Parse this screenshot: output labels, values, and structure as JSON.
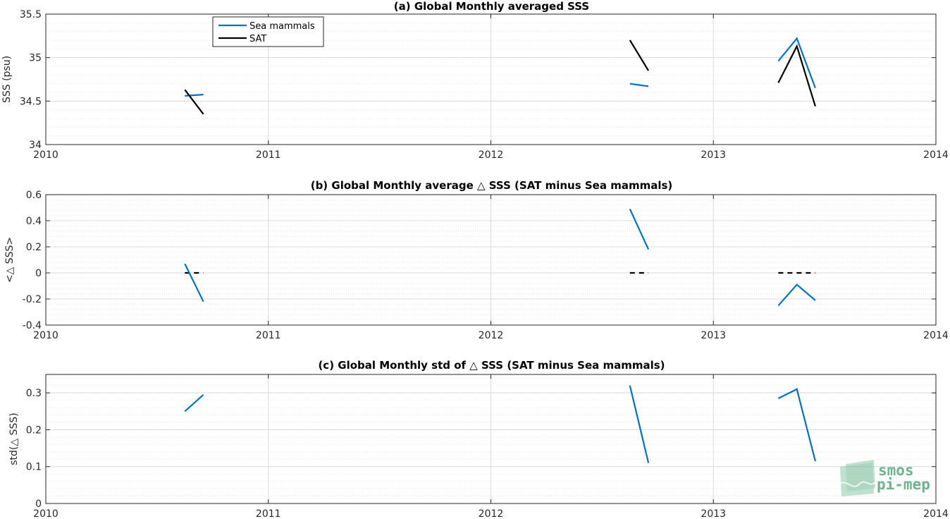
{
  "colors": {
    "sea_mammals": "#0072BD",
    "sat": "#000000",
    "grid": "#dcdcdc",
    "logo": "#6fb38f"
  },
  "logo": {
    "line1": "smos",
    "line2": "pi-mep"
  },
  "chart_data": [
    {
      "type": "line",
      "title": "(a) Global Monthly averaged SSS",
      "xlabel": "",
      "ylabel": "SSS (psu)",
      "xlim": [
        2010,
        2014
      ],
      "ylim": [
        34,
        35.5
      ],
      "xticks": [
        2010,
        2011,
        2012,
        2013,
        2014
      ],
      "yticks": [
        34,
        34.5,
        35,
        35.5
      ],
      "ytick_labels": [
        "34",
        "34.5",
        "35",
        "35.5"
      ],
      "minor_grid": true,
      "grid": true,
      "legend": {
        "placement": "top-left",
        "entries": [
          "Sea mammals",
          "SAT"
        ]
      },
      "series": [
        {
          "name": "Sea mammals",
          "color": "#0072BD",
          "segments": [
            [
              [
                2010.625,
                34.56
              ],
              [
                2010.708,
                34.575
              ]
            ],
            [
              [
                2012.625,
                34.7
              ],
              [
                2012.708,
                34.67
              ]
            ],
            [
              [
                2013.292,
                34.96
              ],
              [
                2013.375,
                35.22
              ],
              [
                2013.458,
                34.65
              ]
            ]
          ]
        },
        {
          "name": "SAT",
          "color": "#000000",
          "segments": [
            [
              [
                2010.625,
                34.63
              ],
              [
                2010.708,
                34.35
              ]
            ],
            [
              [
                2012.625,
                35.2
              ],
              [
                2012.708,
                34.85
              ]
            ],
            [
              [
                2013.292,
                34.71
              ],
              [
                2013.375,
                35.13
              ],
              [
                2013.458,
                34.44
              ]
            ]
          ]
        }
      ]
    },
    {
      "type": "line",
      "title": "(b) Global Monthly average △ SSS (SAT minus Sea mammals)",
      "xlabel": "",
      "ylabel": "<△ SSS>",
      "xlim": [
        2010,
        2014
      ],
      "ylim": [
        -0.4,
        0.6
      ],
      "xticks": [
        2010,
        2011,
        2012,
        2013,
        2014
      ],
      "yticks": [
        -0.4,
        -0.2,
        0,
        0.2,
        0.4,
        0.6
      ],
      "ytick_labels": [
        "-0.4",
        "-0.2",
        "0",
        "0.2",
        "0.4",
        "0.6"
      ],
      "minor_grid": true,
      "grid": true,
      "series": [
        {
          "color": "#0072BD",
          "segments": [
            [
              [
                2010.625,
                0.07
              ],
              [
                2010.708,
                -0.22
              ]
            ],
            [
              [
                2012.625,
                0.49
              ],
              [
                2012.708,
                0.18
              ]
            ],
            [
              [
                2013.292,
                -0.25
              ],
              [
                2013.375,
                -0.09
              ],
              [
                2013.458,
                -0.21
              ]
            ]
          ]
        }
      ],
      "zero_line": {
        "color": "#000000",
        "dashed": true,
        "segments": [
          [
            [
              2010.625,
              0
            ],
            [
              2010.708,
              0
            ]
          ],
          [
            [
              2012.625,
              0
            ],
            [
              2012.708,
              0
            ]
          ],
          [
            [
              2013.292,
              0
            ],
            [
              2013.458,
              0
            ]
          ]
        ]
      }
    },
    {
      "type": "line",
      "title": "(c) Global Monthly std of △ SSS (SAT minus Sea mammals)",
      "xlabel": "",
      "ylabel": "std(△ SSS)",
      "xlim": [
        2010,
        2014
      ],
      "ylim": [
        0,
        0.35
      ],
      "xticks": [
        2010,
        2011,
        2012,
        2013,
        2014
      ],
      "yticks": [
        0,
        0.1,
        0.2,
        0.3
      ],
      "ytick_labels": [
        "0",
        "0.1",
        "0.2",
        "0.3"
      ],
      "minor_grid": true,
      "grid": true,
      "series": [
        {
          "color": "#0072BD",
          "segments": [
            [
              [
                2010.625,
                0.25
              ],
              [
                2010.708,
                0.295
              ]
            ],
            [
              [
                2012.625,
                0.32
              ],
              [
                2012.708,
                0.11
              ]
            ],
            [
              [
                2013.292,
                0.285
              ],
              [
                2013.375,
                0.31
              ],
              [
                2013.458,
                0.115
              ]
            ]
          ]
        }
      ]
    }
  ]
}
